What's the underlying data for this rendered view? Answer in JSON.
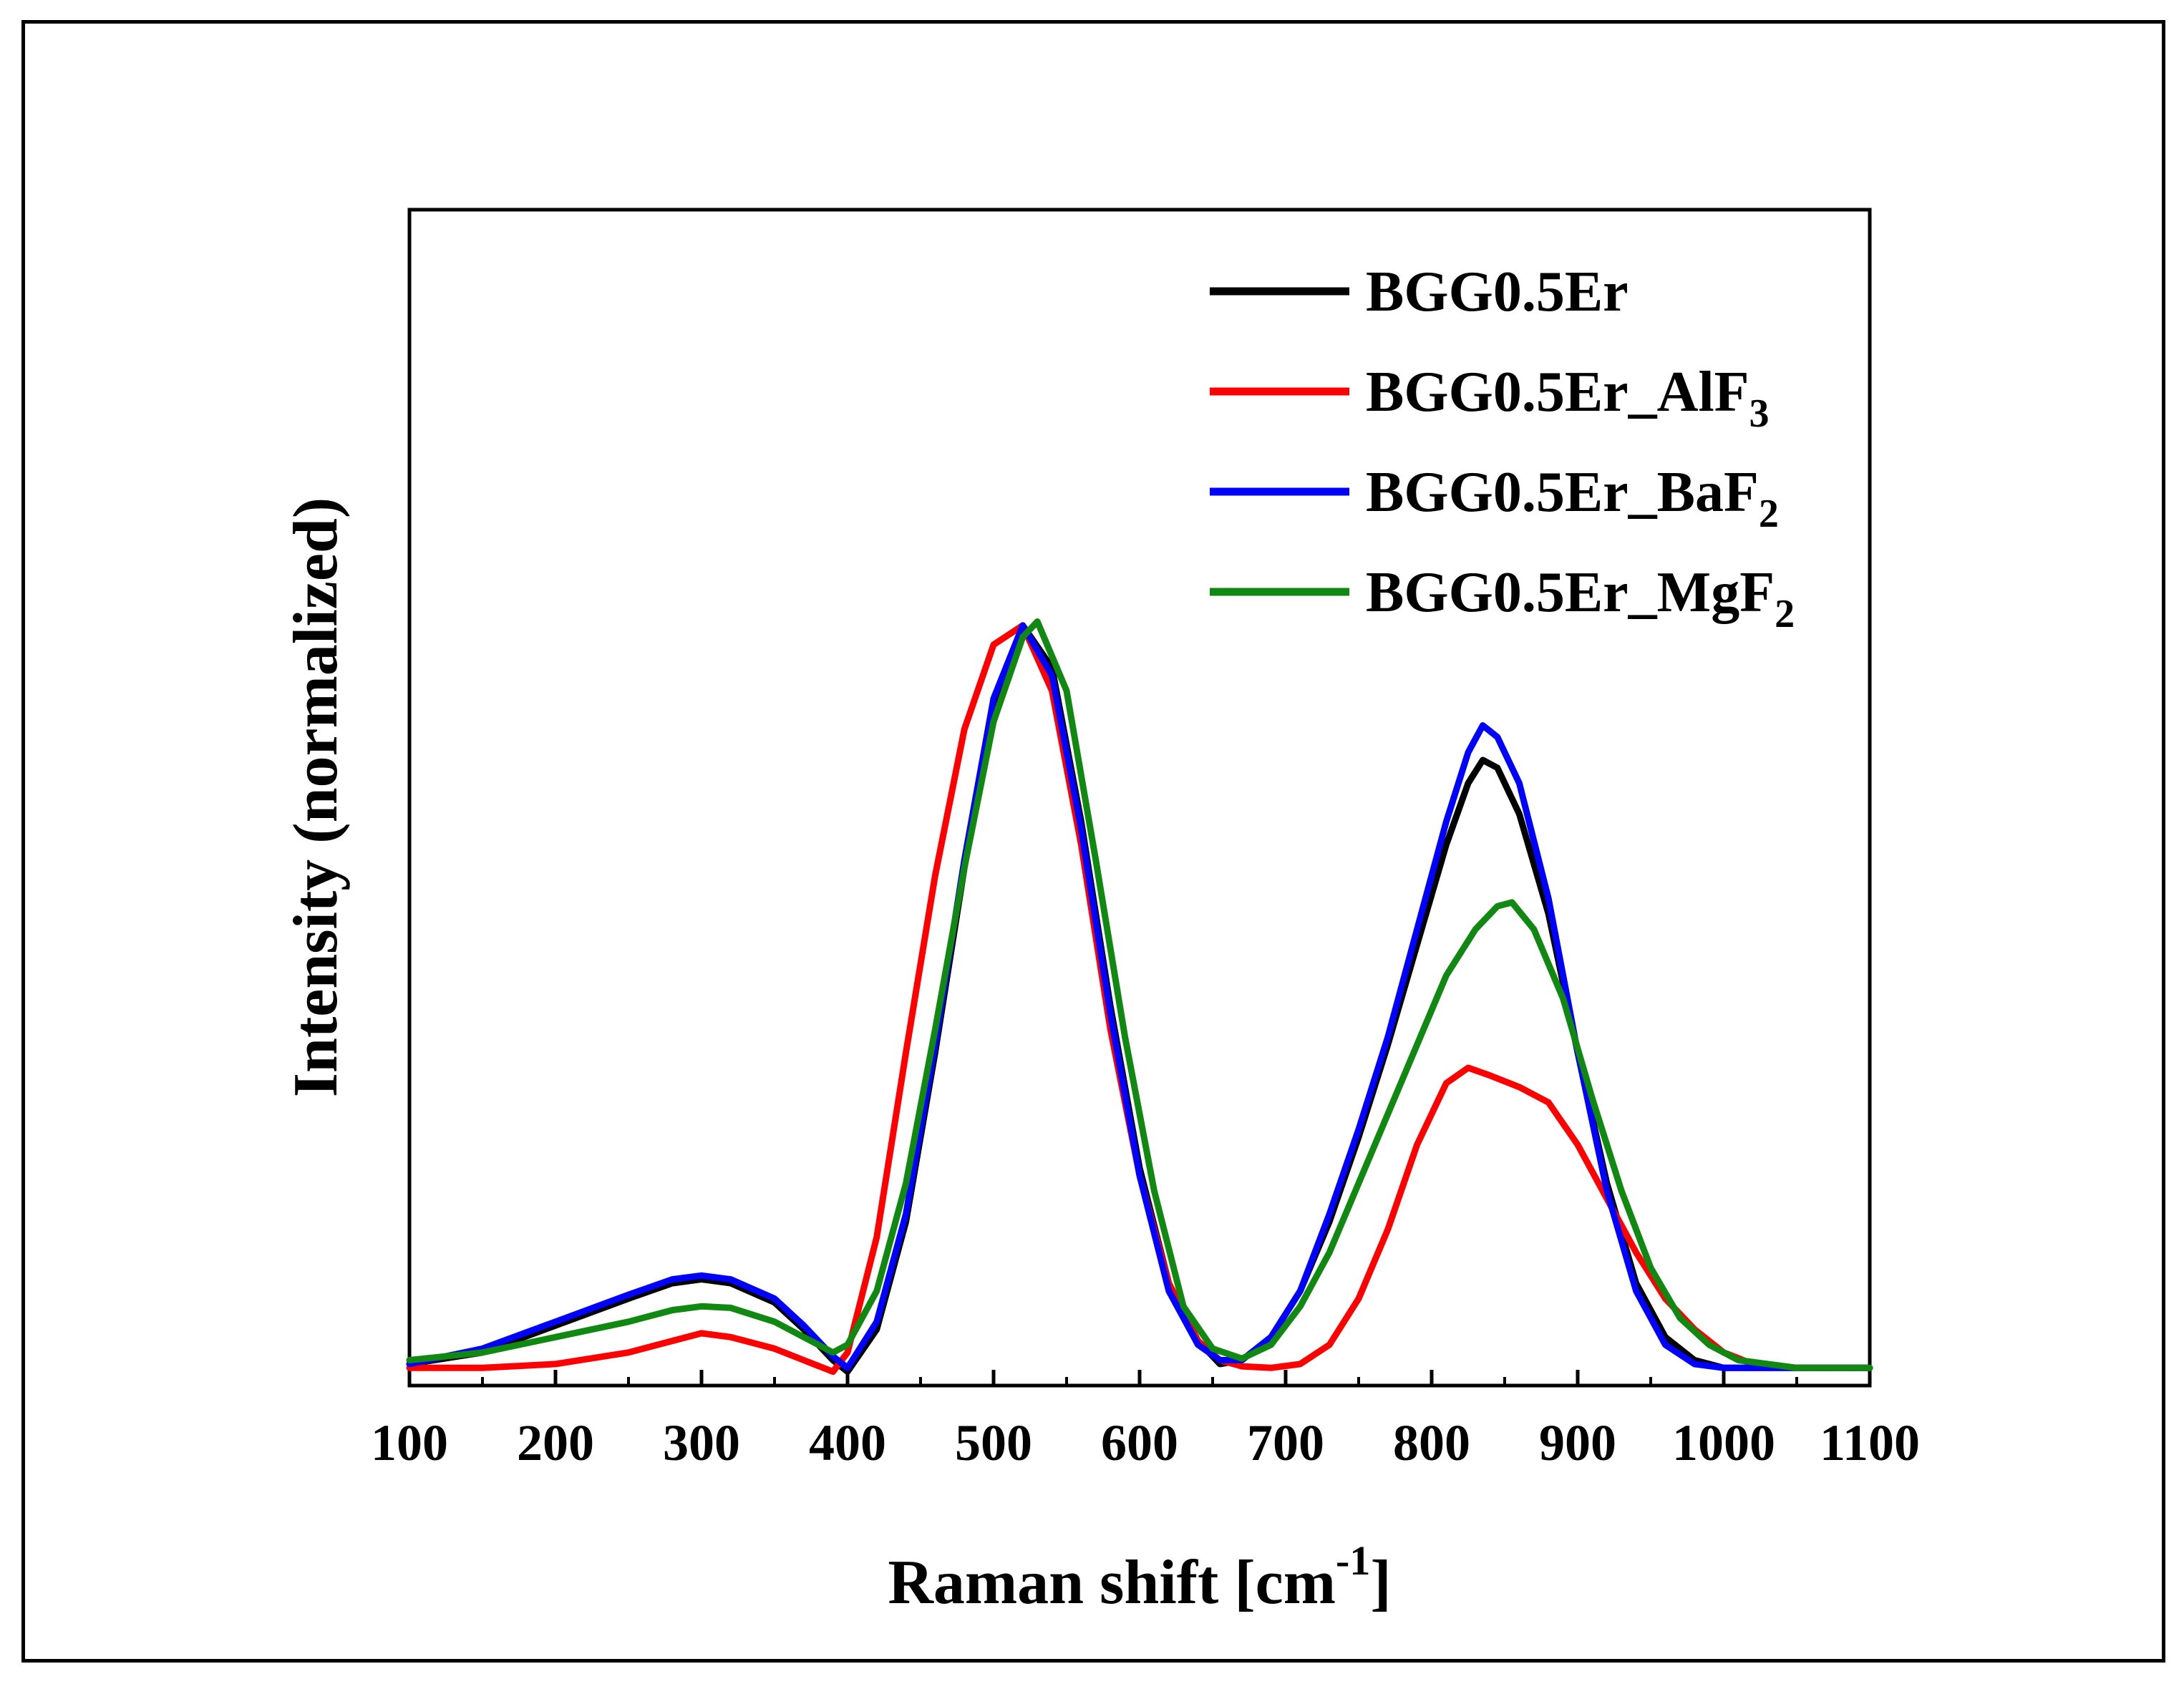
{
  "chart_data": {
    "type": "line",
    "title": "",
    "xlabel": "Raman shift [cm",
    "xlabel_sup": "-1",
    "xlabel_close": "]",
    "ylabel": "Intensity (normalized)",
    "xlim": [
      100,
      1100
    ],
    "ylim": [
      0,
      1.0
    ],
    "xticks": [
      100,
      200,
      300,
      400,
      500,
      600,
      700,
      800,
      900,
      1000,
      1100
    ],
    "show_yticks": false,
    "grid": false,
    "legend_position": "top-right",
    "series": [
      {
        "name": "BGG0.5Er",
        "label_base": "BGG0.5Er",
        "label_sub": "",
        "color": "#000000",
        "x": [
          100,
          150,
          200,
          250,
          280,
          300,
          320,
          350,
          370,
          390,
          400,
          420,
          440,
          460,
          480,
          500,
          520,
          540,
          560,
          580,
          600,
          620,
          640,
          655,
          670,
          690,
          710,
          730,
          750,
          770,
          790,
          810,
          825,
          835,
          845,
          860,
          880,
          900,
          920,
          940,
          960,
          980,
          1000,
          1050,
          1100
        ],
        "y": [
          0.015,
          0.03,
          0.065,
          0.1,
          0.12,
          0.125,
          0.12,
          0.095,
          0.06,
          0.02,
          0.005,
          0.06,
          0.2,
          0.42,
          0.66,
          0.87,
          0.975,
          0.92,
          0.72,
          0.48,
          0.27,
          0.12,
          0.045,
          0.015,
          0.02,
          0.05,
          0.11,
          0.2,
          0.31,
          0.43,
          0.56,
          0.69,
          0.77,
          0.8,
          0.79,
          0.73,
          0.6,
          0.42,
          0.25,
          0.12,
          0.05,
          0.02,
          0.01,
          0.01,
          0.01
        ]
      },
      {
        "name": "BGG0.5Er_AlF3",
        "label_base": "BGG0.5Er_AlF",
        "label_sub": "3",
        "color": "#ff0000",
        "x": [
          100,
          150,
          200,
          250,
          280,
          300,
          320,
          350,
          370,
          390,
          400,
          420,
          440,
          460,
          480,
          500,
          520,
          540,
          560,
          580,
          600,
          620,
          640,
          655,
          670,
          690,
          710,
          730,
          750,
          770,
          790,
          810,
          825,
          840,
          860,
          880,
          900,
          920,
          940,
          960,
          980,
          1000,
          1020,
          1050,
          1100
        ],
        "y": [
          0.01,
          0.01,
          0.015,
          0.03,
          0.045,
          0.055,
          0.05,
          0.035,
          0.02,
          0.005,
          0.03,
          0.18,
          0.42,
          0.65,
          0.84,
          0.95,
          0.975,
          0.89,
          0.69,
          0.45,
          0.26,
          0.12,
          0.045,
          0.02,
          0.012,
          0.01,
          0.015,
          0.04,
          0.1,
          0.19,
          0.3,
          0.38,
          0.4,
          0.39,
          0.375,
          0.355,
          0.3,
          0.23,
          0.16,
          0.1,
          0.06,
          0.03,
          0.015,
          0.01,
          0.01
        ]
      },
      {
        "name": "BGG0.5Er_BaF2",
        "label_base": "BGG0.5Er_BaF",
        "label_sub": "2",
        "color": "#0000ff",
        "x": [
          100,
          150,
          200,
          250,
          280,
          300,
          320,
          350,
          370,
          390,
          400,
          420,
          440,
          460,
          480,
          500,
          520,
          540,
          560,
          580,
          600,
          620,
          640,
          655,
          670,
          690,
          710,
          730,
          750,
          770,
          790,
          810,
          825,
          835,
          845,
          860,
          880,
          900,
          920,
          940,
          960,
          980,
          1000,
          1050,
          1100
        ],
        "y": [
          0.015,
          0.035,
          0.07,
          0.105,
          0.125,
          0.13,
          0.125,
          0.1,
          0.065,
          0.025,
          0.01,
          0.07,
          0.21,
          0.43,
          0.67,
          0.88,
          0.975,
          0.91,
          0.71,
          0.47,
          0.26,
          0.11,
          0.04,
          0.02,
          0.02,
          0.05,
          0.11,
          0.21,
          0.32,
          0.44,
          0.58,
          0.72,
          0.81,
          0.845,
          0.83,
          0.77,
          0.62,
          0.42,
          0.24,
          0.11,
          0.04,
          0.015,
          0.01,
          0.01,
          0.01
        ]
      },
      {
        "name": "BGG0.5Er_MgF2",
        "label_base": "BGG0.5Er_MgF",
        "label_sub": "2",
        "color": "#118811",
        "x": [
          100,
          150,
          200,
          250,
          280,
          300,
          320,
          350,
          370,
          390,
          400,
          420,
          440,
          460,
          480,
          500,
          520,
          530,
          550,
          570,
          590,
          610,
          630,
          650,
          670,
          690,
          710,
          730,
          750,
          770,
          790,
          810,
          830,
          845,
          855,
          870,
          890,
          910,
          930,
          950,
          970,
          990,
          1010,
          1050,
          1100
        ],
        "y": [
          0.02,
          0.03,
          0.05,
          0.07,
          0.085,
          0.09,
          0.088,
          0.07,
          0.05,
          0.03,
          0.04,
          0.11,
          0.25,
          0.45,
          0.66,
          0.85,
          0.96,
          0.98,
          0.89,
          0.67,
          0.44,
          0.24,
          0.09,
          0.035,
          0.022,
          0.04,
          0.09,
          0.16,
          0.25,
          0.34,
          0.43,
          0.52,
          0.58,
          0.61,
          0.615,
          0.58,
          0.49,
          0.36,
          0.24,
          0.14,
          0.075,
          0.04,
          0.02,
          0.01,
          0.01
        ]
      }
    ]
  }
}
